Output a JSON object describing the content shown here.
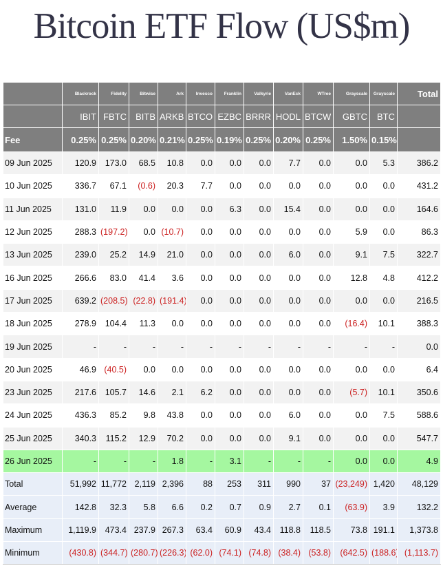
{
  "title": "Bitcoin ETF Flow (US$m)",
  "issuers": [
    "Blackrock",
    "Fidelity",
    "Bitwise",
    "Ark",
    "Invesco",
    "Franklin",
    "Valkyrie",
    "VanEck",
    "WTree",
    "Grayscale",
    "Grayscale"
  ],
  "total_header": "Total",
  "tickers": [
    "IBIT",
    "FBTC",
    "BITB",
    "ARKB",
    "BTCO",
    "EZBC",
    "BRRR",
    "HODL",
    "BTCW",
    "GBTC",
    "BTC"
  ],
  "fee_label": "Fee",
  "fees": [
    "0.25%",
    "0.25%",
    "0.20%",
    "0.21%",
    "0.25%",
    "0.19%",
    "0.25%",
    "0.20%",
    "0.25%",
    "1.50%",
    "0.15%"
  ],
  "rows": [
    {
      "label": "09 Jun 2025",
      "values": [
        "120.9",
        "173.0",
        "68.5",
        "10.8",
        "0.0",
        "0.0",
        "0.0",
        "7.7",
        "0.0",
        "0.0",
        "5.3"
      ],
      "total": "386.2"
    },
    {
      "label": "10 Jun 2025",
      "values": [
        "336.7",
        "67.1",
        "(0.6)",
        "20.3",
        "7.7",
        "0.0",
        "0.0",
        "0.0",
        "0.0",
        "0.0",
        "0.0"
      ],
      "total": "431.2"
    },
    {
      "label": "11 Jun 2025",
      "values": [
        "131.0",
        "11.9",
        "0.0",
        "0.0",
        "0.0",
        "6.3",
        "0.0",
        "15.4",
        "0.0",
        "0.0",
        "0.0"
      ],
      "total": "164.6"
    },
    {
      "label": "12 Jun 2025",
      "values": [
        "288.3",
        "(197.2)",
        "0.0",
        "(10.7)",
        "0.0",
        "0.0",
        "0.0",
        "0.0",
        "0.0",
        "5.9",
        "0.0"
      ],
      "total": "86.3"
    },
    {
      "label": "13 Jun 2025",
      "values": [
        "239.0",
        "25.2",
        "14.9",
        "21.0",
        "0.0",
        "0.0",
        "0.0",
        "6.0",
        "0.0",
        "9.1",
        "7.5"
      ],
      "total": "322.7"
    },
    {
      "label": "16 Jun 2025",
      "values": [
        "266.6",
        "83.0",
        "41.4",
        "3.6",
        "0.0",
        "0.0",
        "0.0",
        "0.0",
        "0.0",
        "12.8",
        "4.8"
      ],
      "total": "412.2"
    },
    {
      "label": "17 Jun 2025",
      "values": [
        "639.2",
        "(208.5)",
        "(22.8)",
        "(191.4)",
        "0.0",
        "0.0",
        "0.0",
        "0.0",
        "0.0",
        "0.0",
        "0.0"
      ],
      "total": "216.5"
    },
    {
      "label": "18 Jun 2025",
      "values": [
        "278.9",
        "104.4",
        "11.3",
        "0.0",
        "0.0",
        "0.0",
        "0.0",
        "0.0",
        "0.0",
        "(16.4)",
        "10.1"
      ],
      "total": "388.3"
    },
    {
      "label": "19 Jun 2025",
      "values": [
        "-",
        "-",
        "-",
        "-",
        "-",
        "-",
        "-",
        "-",
        "-",
        "-",
        "-"
      ],
      "total": "0.0"
    },
    {
      "label": "20 Jun 2025",
      "values": [
        "46.9",
        "(40.5)",
        "0.0",
        "0.0",
        "0.0",
        "0.0",
        "0.0",
        "0.0",
        "0.0",
        "0.0",
        "0.0"
      ],
      "total": "6.4"
    },
    {
      "label": "23 Jun 2025",
      "values": [
        "217.6",
        "105.7",
        "14.6",
        "2.1",
        "6.2",
        "0.0",
        "0.0",
        "0.0",
        "0.0",
        "(5.7)",
        "10.1"
      ],
      "total": "350.6"
    },
    {
      "label": "24 Jun 2025",
      "values": [
        "436.3",
        "85.2",
        "9.8",
        "43.8",
        "0.0",
        "0.0",
        "0.0",
        "6.0",
        "0.0",
        "0.0",
        "7.5"
      ],
      "total": "588.6"
    },
    {
      "label": "25 Jun 2025",
      "values": [
        "340.3",
        "115.2",
        "12.9",
        "70.2",
        "0.0",
        "0.0",
        "0.0",
        "9.1",
        "0.0",
        "0.0",
        "0.0"
      ],
      "total": "547.7"
    },
    {
      "label": "26 Jun 2025",
      "values": [
        "-",
        "-",
        "-",
        "1.8",
        "-",
        "3.1",
        "-",
        "-",
        "-",
        "0.0",
        "0.0"
      ],
      "total": "4.9",
      "highlight": true
    }
  ],
  "stats": [
    {
      "label": "Total",
      "values": [
        "51,992",
        "11,772",
        "2,119",
        "2,396",
        "88",
        "253",
        "311",
        "990",
        "37",
        "(23,249)",
        "1,420"
      ],
      "total": "48,129"
    },
    {
      "label": "Average",
      "values": [
        "142.8",
        "32.3",
        "5.8",
        "6.6",
        "0.2",
        "0.7",
        "0.9",
        "2.7",
        "0.1",
        "(63.9)",
        "3.9"
      ],
      "total": "132.2"
    },
    {
      "label": "Maximum",
      "values": [
        "1,119.9",
        "473.4",
        "237.9",
        "267.3",
        "63.4",
        "60.9",
        "43.4",
        "118.8",
        "118.5",
        "73.8",
        "191.1"
      ],
      "total": "1,373.8"
    },
    {
      "label": "Minimum",
      "values": [
        "(430.8)",
        "(344.7)",
        "(280.7)",
        "(226.3)",
        "(62.0)",
        "(74.1)",
        "(74.8)",
        "(38.4)",
        "(53.8)",
        "(642.5)",
        "(188.6)"
      ],
      "total": "(1,113.7)"
    }
  ],
  "colors": {
    "header_bg": "#7f7f7f",
    "row_alt_bg": "#f2f2f2",
    "highlight_bg": "#a5f7a0",
    "stats_bg": "#e8eef8",
    "negative": "#cc2222",
    "title": "#333347"
  }
}
